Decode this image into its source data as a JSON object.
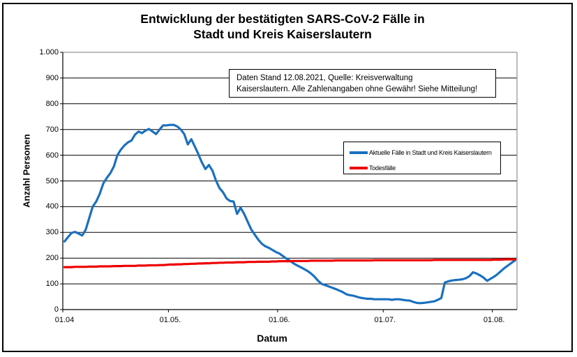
{
  "title": {
    "line1": "Entwicklung der bestätigten SARS-CoV-2 Fälle in",
    "line2": "Stadt und Kreis Kaiserslautern"
  },
  "annotation": {
    "line1": "Daten Stand 12.08.2021, Quelle: Kreisverwaltung",
    "line2": "Kaiserslautern. Alle Zahlenangaben ohne Gewähr! Siehe Mitteilung!"
  },
  "axes": {
    "y_title": "Anzahl Personen",
    "x_title": "Datum"
  },
  "legend": {
    "items": [
      {
        "label": "Aktuelle Fälle in Stadt und Kreis Kaiserslautern",
        "color": "#1B70BE"
      },
      {
        "label": "Todesfälle",
        "color": "#EE0000"
      }
    ]
  },
  "colors": {
    "cases_line": "#1B70BE",
    "deaths_line": "#EE0000",
    "gridline": "#000000",
    "plot_border": "#909090"
  },
  "chart_data": {
    "type": "line",
    "title": "Entwicklung der bestätigten SARS-CoV-2 Fälle in Stadt und Kreis Kaiserslautern",
    "xlabel": "Datum",
    "ylabel": "Anzahl Personen",
    "ylim": [
      0,
      1000
    ],
    "grid": "horizontal",
    "legend_position": "inside-right",
    "x_frequency": "täglich ab 01.04.2021",
    "y_ticks": [
      {
        "value": 0,
        "label": "0"
      },
      {
        "value": 100,
        "label": "100"
      },
      {
        "value": 200,
        "label": "200"
      },
      {
        "value": 300,
        "label": "300"
      },
      {
        "value": 400,
        "label": "400"
      },
      {
        "value": 500,
        "label": "500"
      },
      {
        "value": 600,
        "label": "600"
      },
      {
        "value": 700,
        "label": "700"
      },
      {
        "value": 800,
        "label": "800"
      },
      {
        "value": 900,
        "label": "900"
      },
      {
        "value": 1000,
        "label": "1.000"
      }
    ],
    "x_ticks": [
      {
        "day_index": 0,
        "label": "01.04"
      },
      {
        "day_index": 30,
        "label": "01.05."
      },
      {
        "day_index": 61,
        "label": "01.06."
      },
      {
        "day_index": 91,
        "label": "01.07."
      },
      {
        "day_index": 122,
        "label": "01.08."
      }
    ],
    "series": [
      {
        "name": "Aktuelle Fälle in Stadt und Kreis Kaiserslautern",
        "color": "#1B70BE",
        "stroke_width": 3.2,
        "values": [
          265,
          282,
          298,
          302,
          295,
          288,
          310,
          355,
          400,
          420,
          450,
          490,
          512,
          530,
          556,
          600,
          622,
          638,
          650,
          657,
          680,
          692,
          686,
          696,
          702,
          692,
          682,
          700,
          716,
          716,
          718,
          718,
          712,
          700,
          682,
          642,
          662,
          634,
          604,
          572,
          546,
          562,
          540,
          502,
          472,
          456,
          432,
          422,
          420,
          372,
          396,
          372,
          342,
          312,
          292,
          272,
          256,
          246,
          240,
          232,
          224,
          218,
          208,
          198,
          190,
          180,
          172,
          165,
          158,
          150,
          140,
          128,
          112,
          100,
          95,
          90,
          85,
          80,
          74,
          68,
          60,
          56,
          54,
          50,
          46,
          44,
          42,
          42,
          40,
          40,
          40,
          40,
          40,
          38,
          40,
          40,
          38,
          36,
          35,
          30,
          26,
          25,
          26,
          28,
          30,
          32,
          38,
          45,
          105,
          110,
          113,
          115,
          116,
          118,
          122,
          130,
          145,
          140,
          133,
          124,
          112,
          120,
          128,
          138,
          150,
          162,
          172,
          182,
          192
        ]
      },
      {
        "name": "Todesfälle",
        "color": "#EE0000",
        "stroke_width": 3.2,
        "values": [
          165,
          165,
          165,
          166,
          166,
          166,
          166,
          167,
          167,
          167,
          168,
          168,
          168,
          168,
          169,
          169,
          169,
          170,
          170,
          170,
          170,
          171,
          171,
          171,
          172,
          172,
          172,
          173,
          173,
          174,
          175,
          175,
          176,
          176,
          177,
          177,
          178,
          178,
          179,
          179,
          180,
          180,
          181,
          181,
          182,
          182,
          183,
          183,
          183,
          184,
          184,
          184,
          185,
          185,
          185,
          186,
          186,
          186,
          186,
          187,
          187,
          188,
          188,
          188,
          188,
          189,
          189,
          189,
          189,
          189,
          190,
          190,
          190,
          190,
          190,
          190,
          190,
          191,
          191,
          191,
          191,
          191,
          191,
          191,
          191,
          191,
          191,
          191,
          192,
          192,
          192,
          192,
          192,
          192,
          192,
          192,
          192,
          192,
          192,
          192,
          192,
          192,
          192,
          192,
          192,
          193,
          193,
          193,
          193,
          193,
          193,
          193,
          193,
          193,
          193,
          193,
          193,
          193,
          193,
          193,
          193,
          193,
          194,
          194,
          194,
          195,
          195,
          195,
          195
        ]
      }
    ]
  }
}
